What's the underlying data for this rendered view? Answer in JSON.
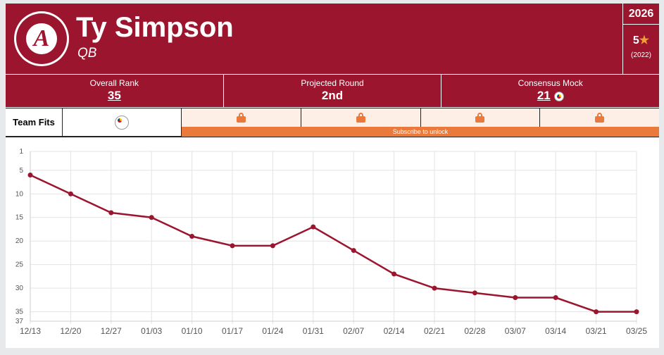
{
  "player": {
    "name": "Ty Simpson",
    "position": "QB",
    "logo_text": "ALABAMA CRIMSON TIDE",
    "class_year": "2026",
    "stars": "5",
    "recruit_year": "(2022)"
  },
  "stats": [
    {
      "label": "Overall Rank",
      "value": "35"
    },
    {
      "label": "Projected Round",
      "value": "2nd"
    },
    {
      "label": "Consensus Mock",
      "value": "21"
    }
  ],
  "team_fits": {
    "label": "Team Fits",
    "subscribe": "Subscribe to unlock",
    "locked_count": 4
  },
  "colors": {
    "primary": "#9c152e",
    "accent": "#ea7a3b"
  },
  "chart_data": {
    "type": "line",
    "title": "",
    "x": [
      "12/13",
      "12/20",
      "12/27",
      "01/03",
      "01/10",
      "01/17",
      "01/24",
      "01/31",
      "02/07",
      "02/14",
      "02/21",
      "02/28",
      "03/07",
      "03/14",
      "03/21",
      "03/25"
    ],
    "series": [
      {
        "name": "Rank",
        "values": [
          6,
          10,
          14,
          15,
          19,
          21,
          21,
          17,
          22,
          27,
          30,
          31,
          32,
          32,
          35,
          35
        ]
      }
    ],
    "yticks": [
      1,
      5,
      10,
      15,
      20,
      25,
      30,
      35,
      37
    ],
    "ylim": [
      1,
      37
    ],
    "y_inverted": true,
    "grid": true
  }
}
